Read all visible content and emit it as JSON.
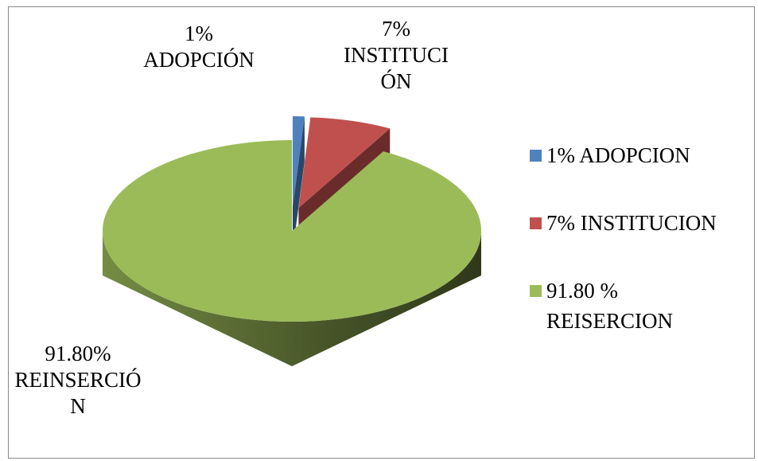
{
  "chart_data": {
    "type": "pie3d",
    "categories": [
      "1% ADOPCION",
      "7% INSTITUCION",
      "91.80 % REISERCION"
    ],
    "values": [
      1,
      7,
      91.8
    ],
    "value_labels": [
      "1% ADOPCIÓN",
      "7% INSTITUCIÓN",
      "91.80% REINSERCIÓN"
    ],
    "colors": [
      "#4f81bd",
      "#c0504d",
      "#9bbb59"
    ],
    "legend": "right"
  }
}
